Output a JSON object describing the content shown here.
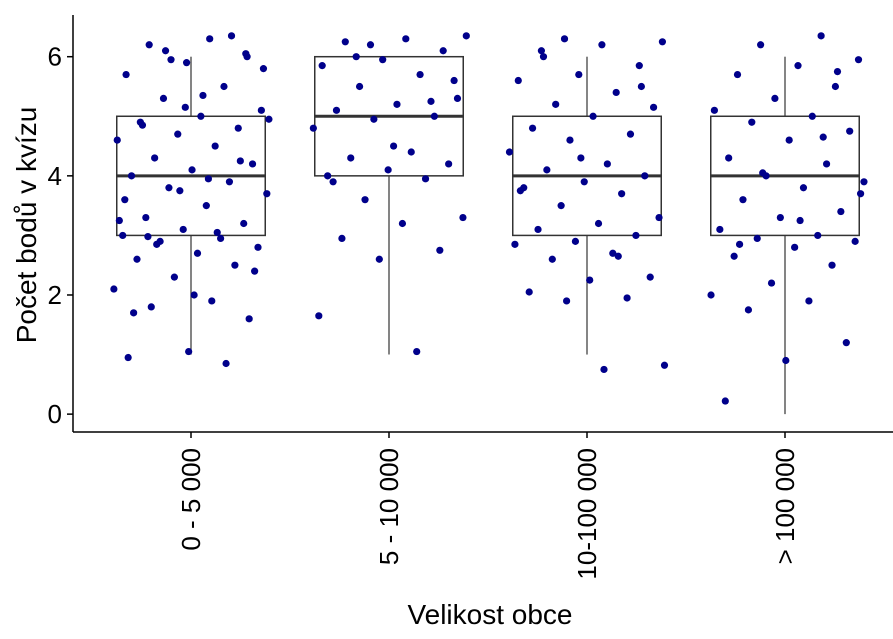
{
  "chart_data": {
    "type": "box",
    "x_label": "Velikost obce",
    "y_label": "Počet bodů v kvízu",
    "categories": [
      "0 - 5 000",
      "5 - 10 000",
      "10-100 000",
      "> 100 000"
    ],
    "boxes": [
      {
        "min": 1,
        "q1": 3,
        "median": 4,
        "q3": 5,
        "max": 6
      },
      {
        "min": 1,
        "q1": 4,
        "median": 5,
        "q3": 6,
        "max": 6
      },
      {
        "min": 1,
        "q1": 3,
        "median": 4,
        "q3": 5,
        "max": 6
      },
      {
        "min": 0,
        "q1": 3,
        "median": 4,
        "q3": 5,
        "max": 6
      }
    ],
    "points": [
      [
        6.3,
        6.2,
        6.0,
        5.9,
        5.7,
        5.5,
        5.3,
        5.1,
        5.0,
        4.9,
        4.8,
        4.7,
        4.6,
        4.5,
        4.3,
        4.2,
        4.1,
        4.0,
        3.9,
        3.8,
        3.7,
        3.5,
        3.3,
        3.2,
        3.1,
        3.0,
        2.95,
        2.9,
        2.8,
        2.7,
        2.6,
        2.5,
        2.3,
        2.1,
        1.9,
        1.8,
        1.6,
        1.05,
        0.95,
        0.85,
        6.1,
        5.8,
        5.35,
        4.85,
        4.25,
        3.75,
        3.25,
        3.05,
        2.85,
        2.4,
        2.0,
        1.7,
        6.35,
        5.95,
        4.95,
        3.95,
        2.98,
        6.05,
        5.15,
        3.6
      ],
      [
        6.35,
        6.3,
        6.25,
        6.1,
        5.95,
        5.85,
        5.7,
        5.5,
        5.3,
        5.2,
        5.1,
        5.0,
        4.95,
        4.8,
        4.4,
        4.3,
        4.2,
        4.1,
        4.0,
        3.95,
        3.6,
        3.3,
        3.2,
        2.95,
        2.75,
        2.6,
        1.65,
        1.05,
        6.0,
        5.6,
        4.5,
        3.9,
        5.25,
        6.2
      ],
      [
        6.3,
        6.25,
        6.2,
        6.1,
        5.85,
        5.7,
        5.6,
        5.4,
        5.2,
        5.15,
        5.0,
        4.8,
        4.7,
        4.6,
        4.4,
        4.2,
        4.1,
        4.0,
        3.9,
        3.8,
        3.7,
        3.5,
        3.3,
        3.2,
        3.1,
        3.0,
        2.9,
        2.85,
        2.7,
        2.6,
        2.3,
        2.25,
        2.05,
        1.95,
        1.9,
        0.82,
        0.75,
        6.0,
        5.5,
        4.3,
        3.75,
        2.65
      ],
      [
        6.35,
        6.2,
        5.95,
        5.85,
        5.7,
        5.5,
        5.3,
        5.1,
        5.0,
        4.9,
        4.75,
        4.6,
        4.3,
        4.2,
        4.0,
        3.9,
        3.8,
        3.6,
        3.4,
        3.3,
        3.1,
        3.0,
        2.95,
        2.9,
        2.8,
        2.65,
        2.5,
        2.2,
        2.0,
        1.9,
        1.75,
        1.2,
        0.9,
        0.22,
        4.65,
        4.05,
        3.7,
        3.25,
        2.85,
        5.75
      ]
    ],
    "point_color": "#00008b",
    "box_color": "#333333",
    "ylim": [
      -0.3,
      6.7
    ],
    "yticks": [
      0,
      2,
      4,
      6
    ]
  }
}
